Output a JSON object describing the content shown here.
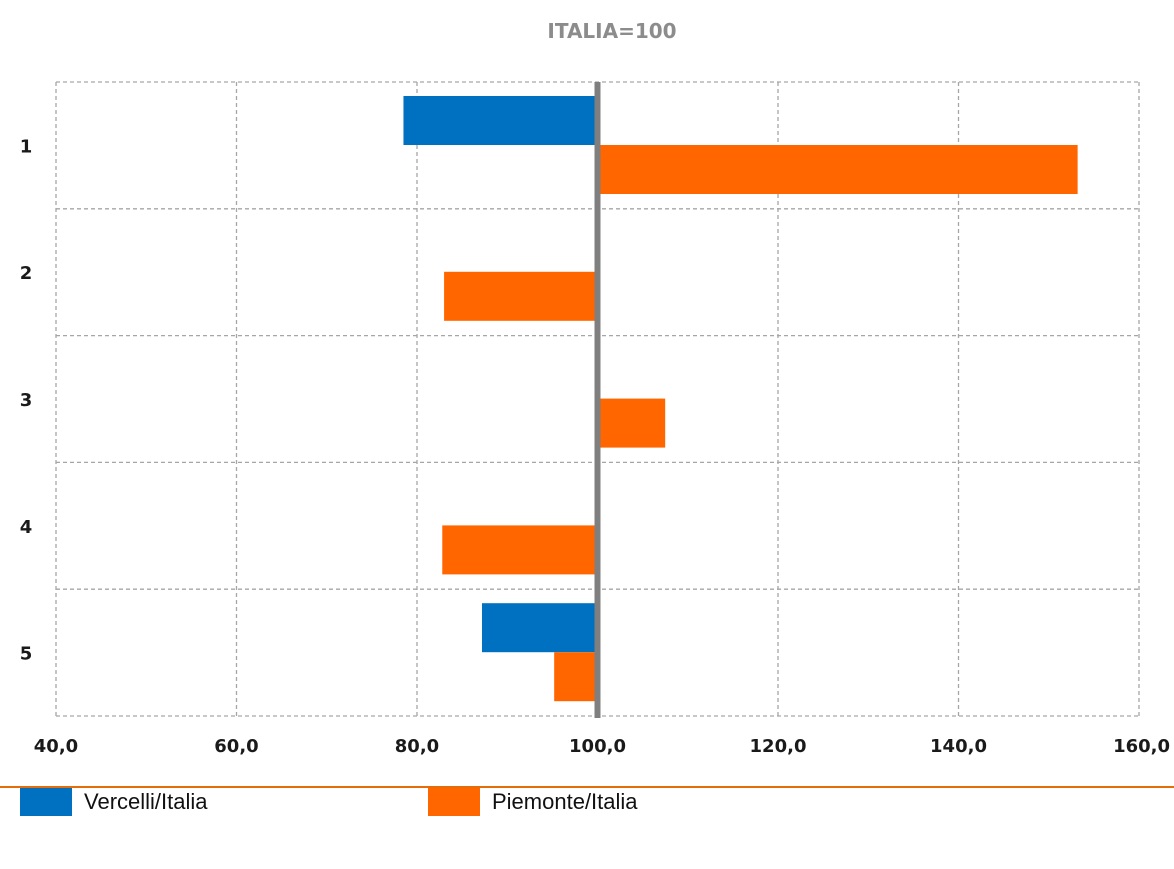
{
  "colors": {
    "vercelli": "#0070c0",
    "piemonte": "#ff6600",
    "reference_line": "#7f7f7f",
    "grid": "#a6a6a6",
    "divider": "#e46c0a"
  },
  "chart_data": {
    "type": "bar",
    "orientation": "horizontal",
    "title": "ITALIA=100",
    "categories": [
      "1",
      "2",
      "3",
      "4",
      "5"
    ],
    "baseline": 100,
    "xlim": [
      40,
      160
    ],
    "x_ticks": [
      "40,0",
      "60,0",
      "80,0",
      "100,0",
      "120,0",
      "140,0",
      "160,0"
    ],
    "grid": true,
    "legend_position": "bottom",
    "series": [
      {
        "name": "Vercelli/Italia",
        "values": [
          78.5,
          null,
          null,
          null,
          87.2
        ],
        "color": "#0070c0"
      },
      {
        "name": "Piemonte/Italia",
        "values": [
          153.2,
          83.0,
          107.5,
          82.8,
          95.2
        ],
        "color": "#ff6600"
      }
    ]
  }
}
